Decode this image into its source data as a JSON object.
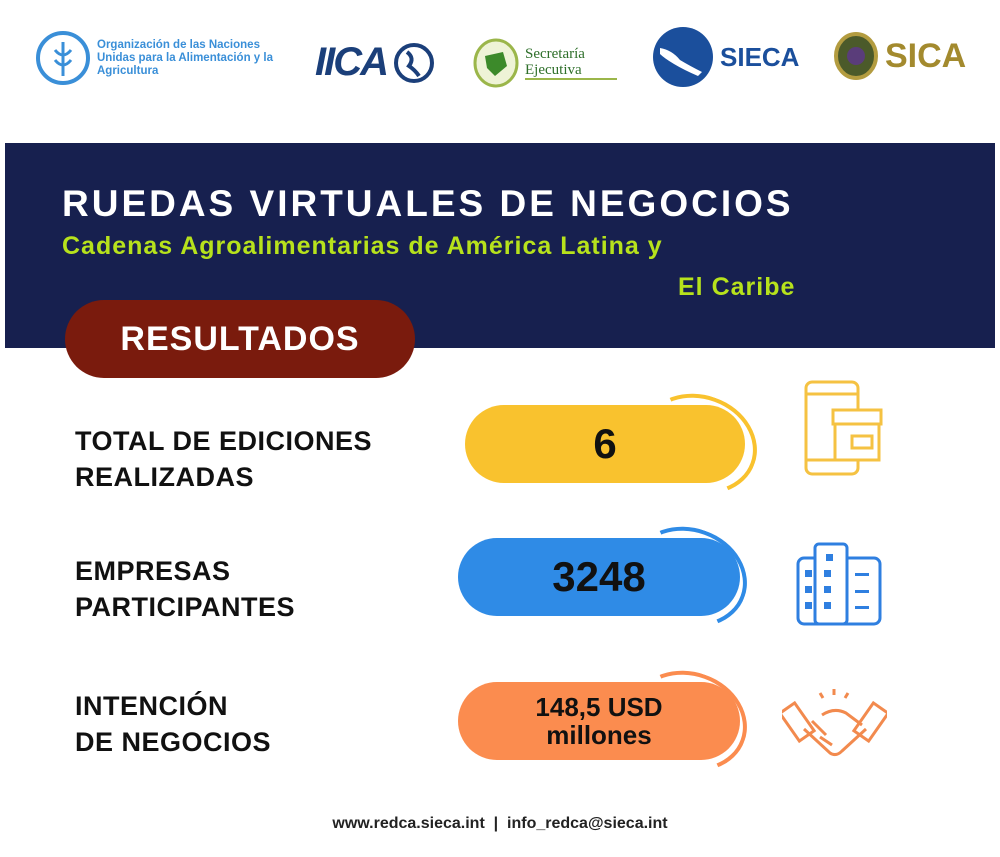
{
  "logos": {
    "fao": "Organización de las Naciones Unidas para la Alimentación y la Agricultura",
    "iica": "IICA",
    "secretaria": "Secretaría Ejecutiva",
    "sieca": "SIECA",
    "sica": "SICA"
  },
  "banner": {
    "title": "RUEDAS VIRTUALES DE NEGOCIOS",
    "subtitle_line1": "Cadenas Agroalimentarias de América Latina y",
    "subtitle_line2": "El Caribe"
  },
  "results_label": "RESULTADOS",
  "stats": [
    {
      "label_line1": "TOTAL DE EDICIONES",
      "label_line2": "REALIZADAS",
      "value": "6",
      "color": "#f9c22e",
      "icon": "mobile-store-icon"
    },
    {
      "label_line1": "EMPRESAS",
      "label_line2": "PARTICIPANTES",
      "value": "3248",
      "color": "#2f8be6",
      "icon": "building-icon"
    },
    {
      "label_line1": "INTENCIÓN",
      "label_line2": "DE NEGOCIOS",
      "value_line1": "148,5 USD",
      "value_line2": "millones",
      "color": "#fb8c4f",
      "icon": "handshake-icon"
    }
  ],
  "footer": {
    "website": "www.redca.sieca.int",
    "separator": "|",
    "email": "info_redca@sieca.int"
  }
}
